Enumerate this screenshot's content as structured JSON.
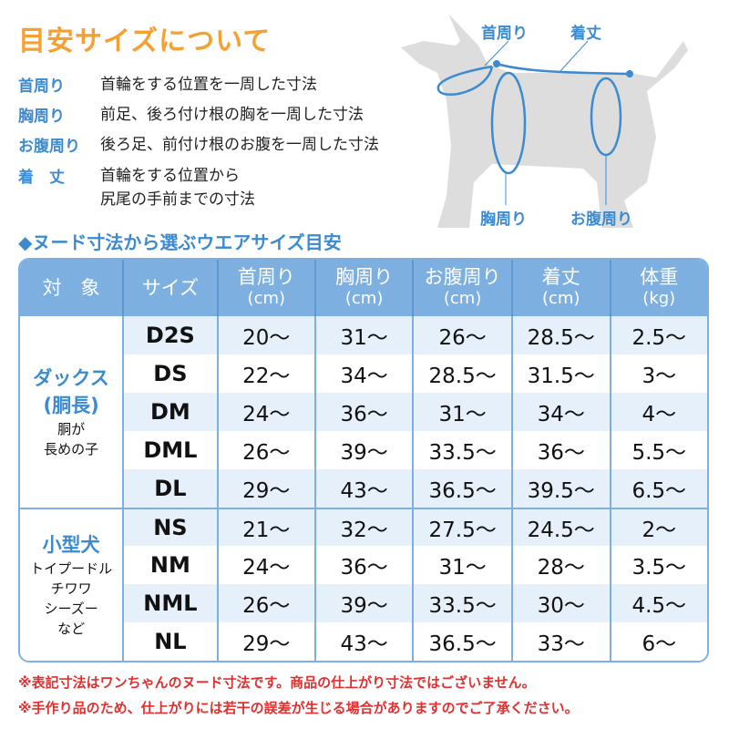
{
  "title": "目安サイズについて",
  "definitions": [
    {
      "term": "首周り",
      "desc": "首輪をする位置を一周した寸法"
    },
    {
      "term": "胸周り",
      "desc": "前足、後ろ付け根の胸を一周した寸法"
    },
    {
      "term": "お腹周り",
      "desc": "後ろ足、前付け根のお腹を一周した寸法"
    },
    {
      "term": "着　丈",
      "desc": "首輪をする位置から",
      "desc2": "尻尾の手前までの寸法"
    }
  ],
  "diagram": {
    "neck": "首周り",
    "length": "着丈",
    "chest": "胸周り",
    "belly": "お腹周り"
  },
  "subtitle": "◆ヌード寸法から選ぶウエアサイズ目安",
  "table": {
    "headers": [
      {
        "label": "対　象",
        "unit": ""
      },
      {
        "label": "サイズ",
        "unit": ""
      },
      {
        "label": "首周り",
        "unit": "(cm)"
      },
      {
        "label": "胸周り",
        "unit": "(cm)"
      },
      {
        "label": "お腹周り",
        "unit": "(cm)"
      },
      {
        "label": "着丈",
        "unit": "(cm)"
      },
      {
        "label": "体重",
        "unit": "(kg)"
      }
    ],
    "groups": [
      {
        "title": "ダックス",
        "title2": "(胴長)",
        "desc": "胴が",
        "desc2": "長めの子"
      },
      {
        "title": "小型犬",
        "desc": "トイプードル",
        "desc2": "チワワ",
        "desc3": "シーズー",
        "desc4": "など"
      }
    ],
    "rows": [
      [
        "D2S",
        "20〜",
        "31〜",
        "26〜",
        "28.5〜",
        "2.5〜"
      ],
      [
        "DS",
        "22〜",
        "34〜",
        "28.5〜",
        "31.5〜",
        "3〜"
      ],
      [
        "DM",
        "24〜",
        "36〜",
        "31〜",
        "34〜",
        "4〜"
      ],
      [
        "DML",
        "26〜",
        "39〜",
        "33.5〜",
        "36〜",
        "5.5〜"
      ],
      [
        "DL",
        "29〜",
        "43〜",
        "36.5〜",
        "39.5〜",
        "6.5〜"
      ],
      [
        "NS",
        "21〜",
        "32〜",
        "27.5〜",
        "24.5〜",
        "2〜"
      ],
      [
        "NM",
        "24〜",
        "36〜",
        "31〜",
        "28〜",
        "3.5〜"
      ],
      [
        "NML",
        "26〜",
        "39〜",
        "33.5〜",
        "30〜",
        "4.5〜"
      ],
      [
        "NL",
        "29〜",
        "43〜",
        "36.5〜",
        "33〜",
        "6〜"
      ]
    ]
  },
  "notes": [
    "※表記寸法はワンちゃんのヌード寸法です。商品の仕上がり寸法ではございません。",
    "※手作り品のため、仕上がりには若干の誤差が生じる場合がありますのでご了承ください。"
  ],
  "colors": {
    "accent": "#3c8ad0",
    "title": "#f5a033",
    "header": "#7db0e0",
    "row": "#e6f0fa",
    "note": "#e03030",
    "silhouette": "#dddddd"
  }
}
